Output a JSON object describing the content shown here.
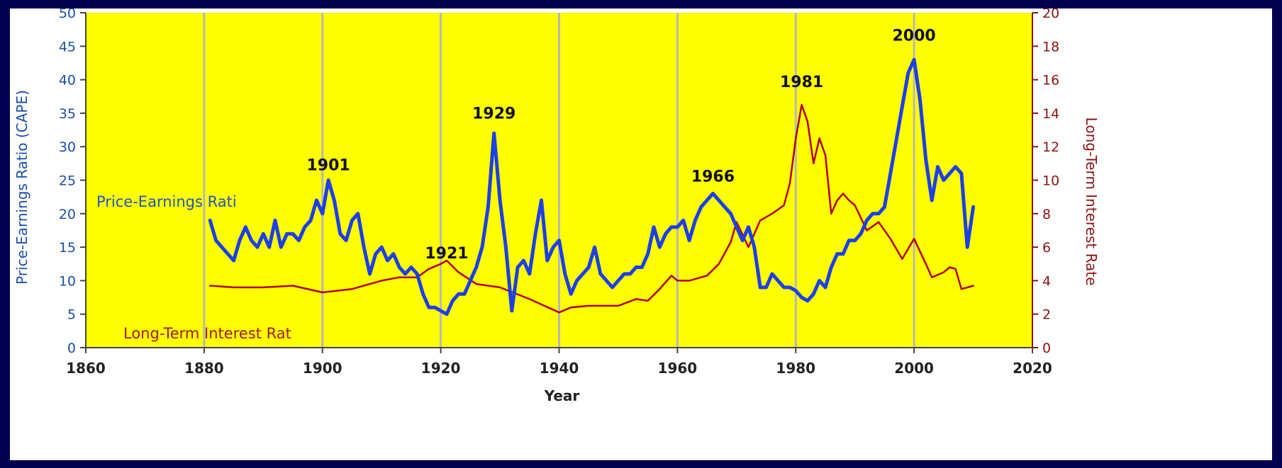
{
  "chart_data": {
    "type": "line",
    "xlabel": "Year",
    "ylabel_left": "Price-Earnings Ratio (CAPE)",
    "ylabel_right": "Long-Term Interest Rate",
    "x_ticks": [
      1860,
      1880,
      1900,
      1920,
      1940,
      1960,
      1980,
      2000,
      2020
    ],
    "y_left_ticks": [
      0,
      5,
      10,
      15,
      20,
      25,
      30,
      35,
      40,
      45,
      50
    ],
    "y_right_ticks": [
      0,
      2,
      4,
      6,
      8,
      10,
      12,
      14,
      16,
      18,
      20
    ],
    "xlim": [
      1860,
      2020
    ],
    "ylim_left": [
      0,
      50
    ],
    "ylim_right": [
      0,
      20
    ],
    "grid_years": [
      1880,
      1900,
      1920,
      1940,
      1960,
      1980,
      2000
    ],
    "colors": {
      "plot_background": "#ffff00",
      "pe_line": "#1c3fe8",
      "rate_line": "#b00000",
      "border": "#02004f"
    },
    "annotations": [
      {
        "text": "1901",
        "x": 1901,
        "y": 26.5
      },
      {
        "text": "1921",
        "x": 1921,
        "y": 13.3
      },
      {
        "text": "1929",
        "x": 1929,
        "y": 34.2
      },
      {
        "text": "1966",
        "x": 1966,
        "y": 24.8
      },
      {
        "text": "1981",
        "x": 1981,
        "y": 38.9
      },
      {
        "text": "2000",
        "x": 2000,
        "y": 45.8
      }
    ],
    "series": [
      {
        "name": "Price-Earnings Ratio",
        "axis": "left",
        "legend_label": "Price-Earnings Rati",
        "x": [
          1881,
          1882,
          1883,
          1884,
          1885,
          1886,
          1887,
          1888,
          1889,
          1890,
          1891,
          1892,
          1893,
          1894,
          1895,
          1896,
          1897,
          1898,
          1899,
          1900,
          1901,
          1902,
          1903,
          1904,
          1905,
          1906,
          1907,
          1908,
          1909,
          1910,
          1911,
          1912,
          1913,
          1914,
          1915,
          1916,
          1917,
          1918,
          1919,
          1920,
          1921,
          1922,
          1923,
          1924,
          1925,
          1926,
          1927,
          1928,
          1929,
          1930,
          1931,
          1932,
          1933,
          1934,
          1935,
          1936,
          1937,
          1938,
          1939,
          1940,
          1941,
          1942,
          1943,
          1944,
          1945,
          1946,
          1947,
          1948,
          1949,
          1950,
          1951,
          1952,
          1953,
          1954,
          1955,
          1956,
          1957,
          1958,
          1959,
          1960,
          1961,
          1962,
          1963,
          1964,
          1965,
          1966,
          1967,
          1968,
          1969,
          1970,
          1971,
          1972,
          1973,
          1974,
          1975,
          1976,
          1977,
          1978,
          1979,
          1980,
          1981,
          1982,
          1983,
          1984,
          1985,
          1986,
          1987,
          1988,
          1989,
          1990,
          1991,
          1992,
          1993,
          1994,
          1995,
          1996,
          1997,
          1998,
          1999,
          2000,
          2001,
          2002,
          2003,
          2004,
          2005,
          2006,
          2007,
          2008,
          2009,
          2010
        ],
        "y": [
          19,
          16,
          15,
          14,
          13,
          16,
          18,
          16,
          15,
          17,
          15,
          19,
          15,
          17,
          17,
          16,
          18,
          19,
          22,
          20,
          25,
          22,
          17,
          16,
          19,
          20,
          15,
          11,
          14,
          15,
          13,
          14,
          12,
          11,
          12,
          11,
          8,
          6,
          6,
          5.5,
          5,
          7,
          8,
          8,
          10,
          12,
          15,
          21,
          32,
          22,
          15,
          5.5,
          12,
          13,
          11,
          17,
          22,
          13,
          15,
          16,
          11,
          8,
          10,
          11,
          12,
          15,
          11,
          10,
          9,
          10,
          11,
          11,
          12,
          12,
          14,
          18,
          15,
          17,
          18,
          18,
          19,
          16,
          19,
          21,
          22,
          23,
          22,
          21,
          20,
          18,
          16,
          18,
          15,
          9,
          9,
          11,
          10,
          9,
          9,
          8.5,
          7.5,
          7,
          8,
          10,
          9,
          12,
          14,
          14,
          16,
          16,
          17,
          19,
          20,
          20,
          21,
          26,
          31,
          36,
          41,
          43,
          37,
          28,
          22,
          27,
          25,
          26,
          27,
          26,
          15,
          21
        ]
      },
      {
        "name": "Long-Term Interest Rate",
        "axis": "right",
        "legend_label": "Long-Term Interest Rat",
        "x": [
          1881,
          1885,
          1890,
          1895,
          1900,
          1905,
          1910,
          1913,
          1916,
          1918,
          1920,
          1921,
          1923,
          1926,
          1930,
          1935,
          1940,
          1942,
          1945,
          1950,
          1953,
          1955,
          1957,
          1959,
          1960,
          1962,
          1965,
          1967,
          1969,
          1970,
          1972,
          1974,
          1976,
          1978,
          1979,
          1980,
          1981,
          1982,
          1983,
          1984,
          1985,
          1986,
          1987,
          1988,
          1989,
          1990,
          1992,
          1994,
          1996,
          1998,
          2000,
          2002,
          2003,
          2005,
          2006,
          2007,
          2008,
          2009,
          2010
        ],
        "y": [
          3.7,
          3.6,
          3.6,
          3.7,
          3.3,
          3.5,
          4.0,
          4.2,
          4.2,
          4.7,
          5.0,
          5.2,
          4.5,
          3.8,
          3.6,
          2.9,
          2.1,
          2.4,
          2.5,
          2.5,
          2.9,
          2.8,
          3.5,
          4.3,
          4.0,
          4.0,
          4.3,
          5.0,
          6.3,
          7.5,
          6.0,
          7.6,
          8.0,
          8.5,
          9.8,
          12.5,
          14.5,
          13.5,
          11.0,
          12.5,
          11.5,
          8.0,
          8.8,
          9.2,
          8.8,
          8.5,
          7.0,
          7.5,
          6.5,
          5.3,
          6.5,
          5.0,
          4.2,
          4.5,
          4.8,
          4.7,
          3.5,
          3.6,
          3.7
        ]
      }
    ]
  }
}
